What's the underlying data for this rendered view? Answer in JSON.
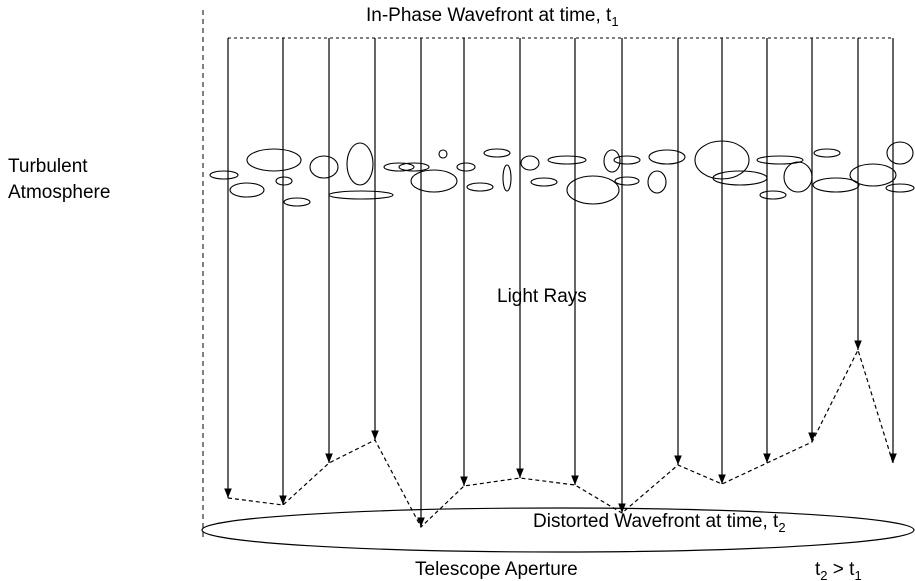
{
  "top_label": {
    "text": "In-Phase Wavefront at time, t",
    "sub": "1"
  },
  "left_label": [
    "Turbulent",
    "Atmosphere"
  ],
  "middle_label": "Light Rays",
  "bottom_label": {
    "text": "Distorted Wavefront at time, t",
    "sub": "2"
  },
  "aperture_label": "Telescope Aperture",
  "relation": {
    "a": "t",
    "a_sub": "2",
    "op": " > t",
    "b_sub": "1"
  }
}
